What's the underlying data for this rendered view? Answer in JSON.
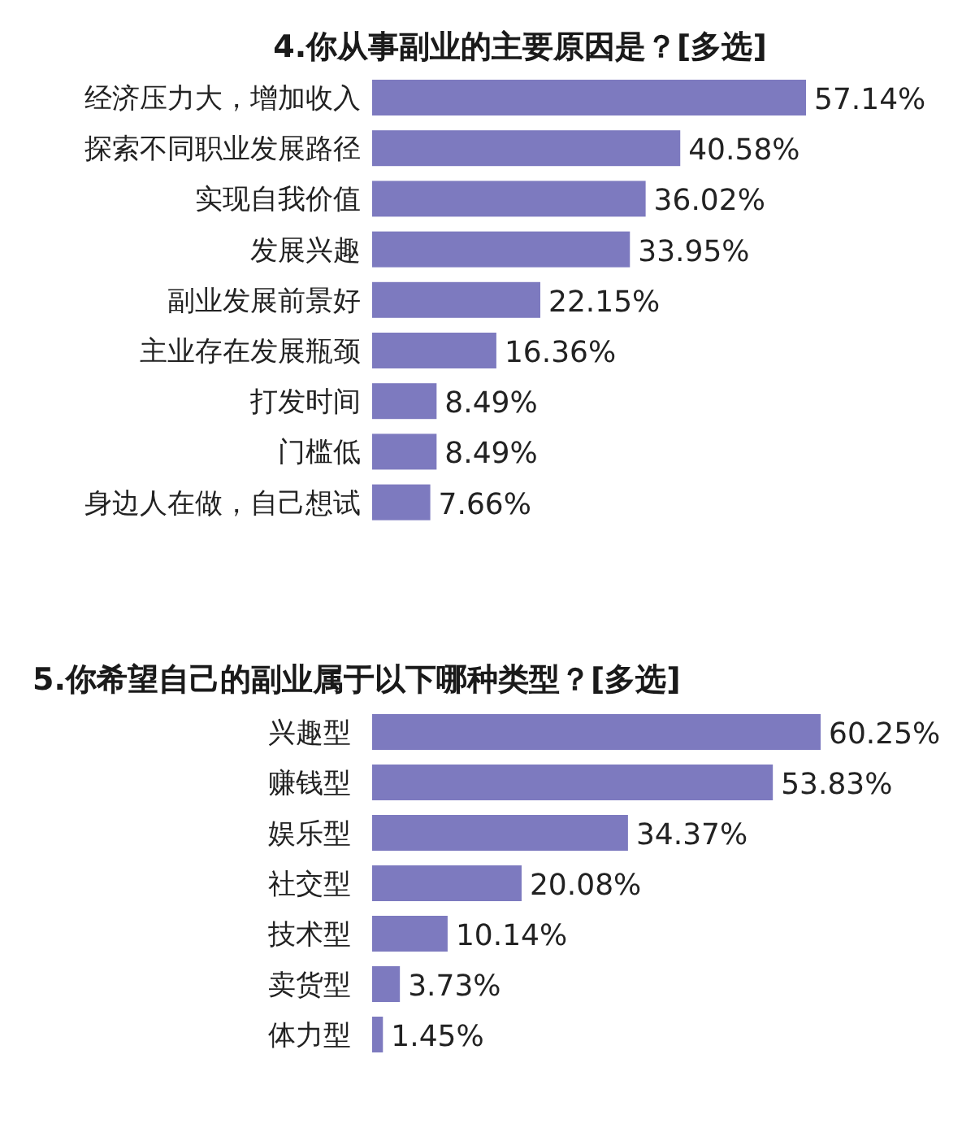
{
  "chart_data": [
    {
      "type": "bar",
      "orientation": "horizontal",
      "title": "4.你从事副业的主要原因是？[多选]",
      "categories": [
        "经济压力大，增加收入",
        "探索不同职业发展路径",
        "实现自我价值",
        "发展兴趣",
        "副业发展前景好",
        "主业存在发展瓶颈",
        "打发时间",
        "门槛低",
        "身边人在做，自己想试"
      ],
      "values": [
        57.14,
        40.58,
        36.02,
        33.95,
        22.15,
        16.36,
        8.49,
        8.49,
        7.66
      ],
      "value_labels": [
        "57.14%",
        "40.58%",
        "36.02%",
        "33.95%",
        "22.15%",
        "16.36%",
        "8.49%",
        "8.49%",
        "7.66%"
      ],
      "color": "#7d7abf"
    },
    {
      "type": "bar",
      "orientation": "horizontal",
      "title": "5.你希望自己的副业属于以下哪种类型？[多选]",
      "categories": [
        "兴趣型",
        "赚钱型",
        "娱乐型",
        "社交型",
        "技术型",
        "卖货型",
        "体力型"
      ],
      "values": [
        60.25,
        53.83,
        34.37,
        20.08,
        10.14,
        3.73,
        1.45
      ],
      "value_labels": [
        "60.25%",
        "53.83%",
        "34.37%",
        "20.08%",
        "10.14%",
        "3.73%",
        "1.45%"
      ],
      "color": "#7d7abf"
    }
  ]
}
